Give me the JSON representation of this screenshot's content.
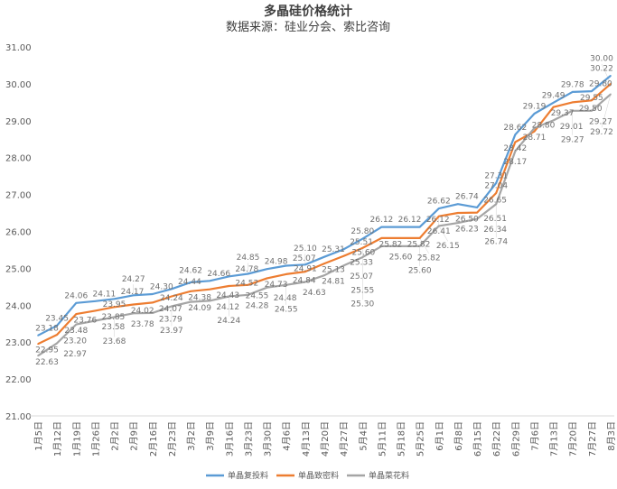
{
  "chart_data": {
    "type": "line",
    "title": "多晶硅价格统计",
    "subtitle": "数据来源：硅业分会、索比咨询",
    "xlabel": "",
    "ylabel": "",
    "ylim": [
      21,
      31
    ],
    "yticks": [
      "21.00",
      "22.00",
      "23.00",
      "24.00",
      "25.00",
      "26.00",
      "27.00",
      "28.00",
      "29.00",
      "30.00",
      "31.00"
    ],
    "grid": false,
    "legend": "bottom",
    "data_labels": true,
    "categories": [
      "1月5日",
      "1月12日",
      "1月19日",
      "1月26日",
      "2月2日",
      "2月9日",
      "2月16日",
      "2月23日",
      "3月2日",
      "3月9日",
      "3月16日",
      "3月23日",
      "3月30日",
      "4月6日",
      "4月13日",
      "4月20日",
      "4月27日",
      "5月4日",
      "5月11日",
      "5月18日",
      "5月25日",
      "6月1日",
      "6月8日",
      "6月15日",
      "6月22日",
      "6月29日",
      "7月6日",
      "7月13日",
      "7月20日",
      "7月27日",
      "8月3日"
    ],
    "series": [
      {
        "name": "单晶复投料",
        "color": "#5b9bd5",
        "values": [
          23.18,
          23.45,
          24.06,
          24.11,
          24.17,
          24.27,
          24.3,
          24.44,
          24.62,
          24.66,
          24.78,
          24.85,
          24.98,
          25.07,
          25.1,
          25.31,
          25.51,
          25.8,
          26.12,
          26.12,
          26.12,
          26.62,
          26.74,
          26.65,
          27.31,
          28.62,
          29.19,
          29.49,
          29.78,
          29.8,
          30.22
        ]
      },
      {
        "name": "单晶致密料",
        "color": "#ed7d31",
        "values": [
          22.95,
          23.2,
          23.76,
          23.85,
          23.95,
          24.02,
          24.07,
          24.24,
          24.38,
          24.43,
          24.52,
          24.55,
          24.73,
          24.84,
          24.91,
          25.13,
          25.33,
          25.55,
          25.82,
          25.82,
          25.82,
          26.41,
          26.5,
          26.51,
          27.04,
          28.42,
          28.71,
          29.37,
          29.5,
          29.55,
          30.0
        ]
      },
      {
        "name": "单晶菜花料",
        "color": "#a5a5a5",
        "values": [
          22.63,
          22.97,
          23.48,
          23.58,
          23.68,
          23.78,
          23.79,
          23.97,
          24.09,
          24.12,
          24.24,
          24.28,
          24.48,
          24.55,
          24.63,
          24.81,
          25.07,
          25.3,
          25.6,
          25.6,
          25.6,
          26.15,
          26.23,
          26.34,
          26.74,
          28.17,
          28.8,
          29.01,
          29.27,
          29.27,
          29.72
        ]
      }
    ]
  }
}
